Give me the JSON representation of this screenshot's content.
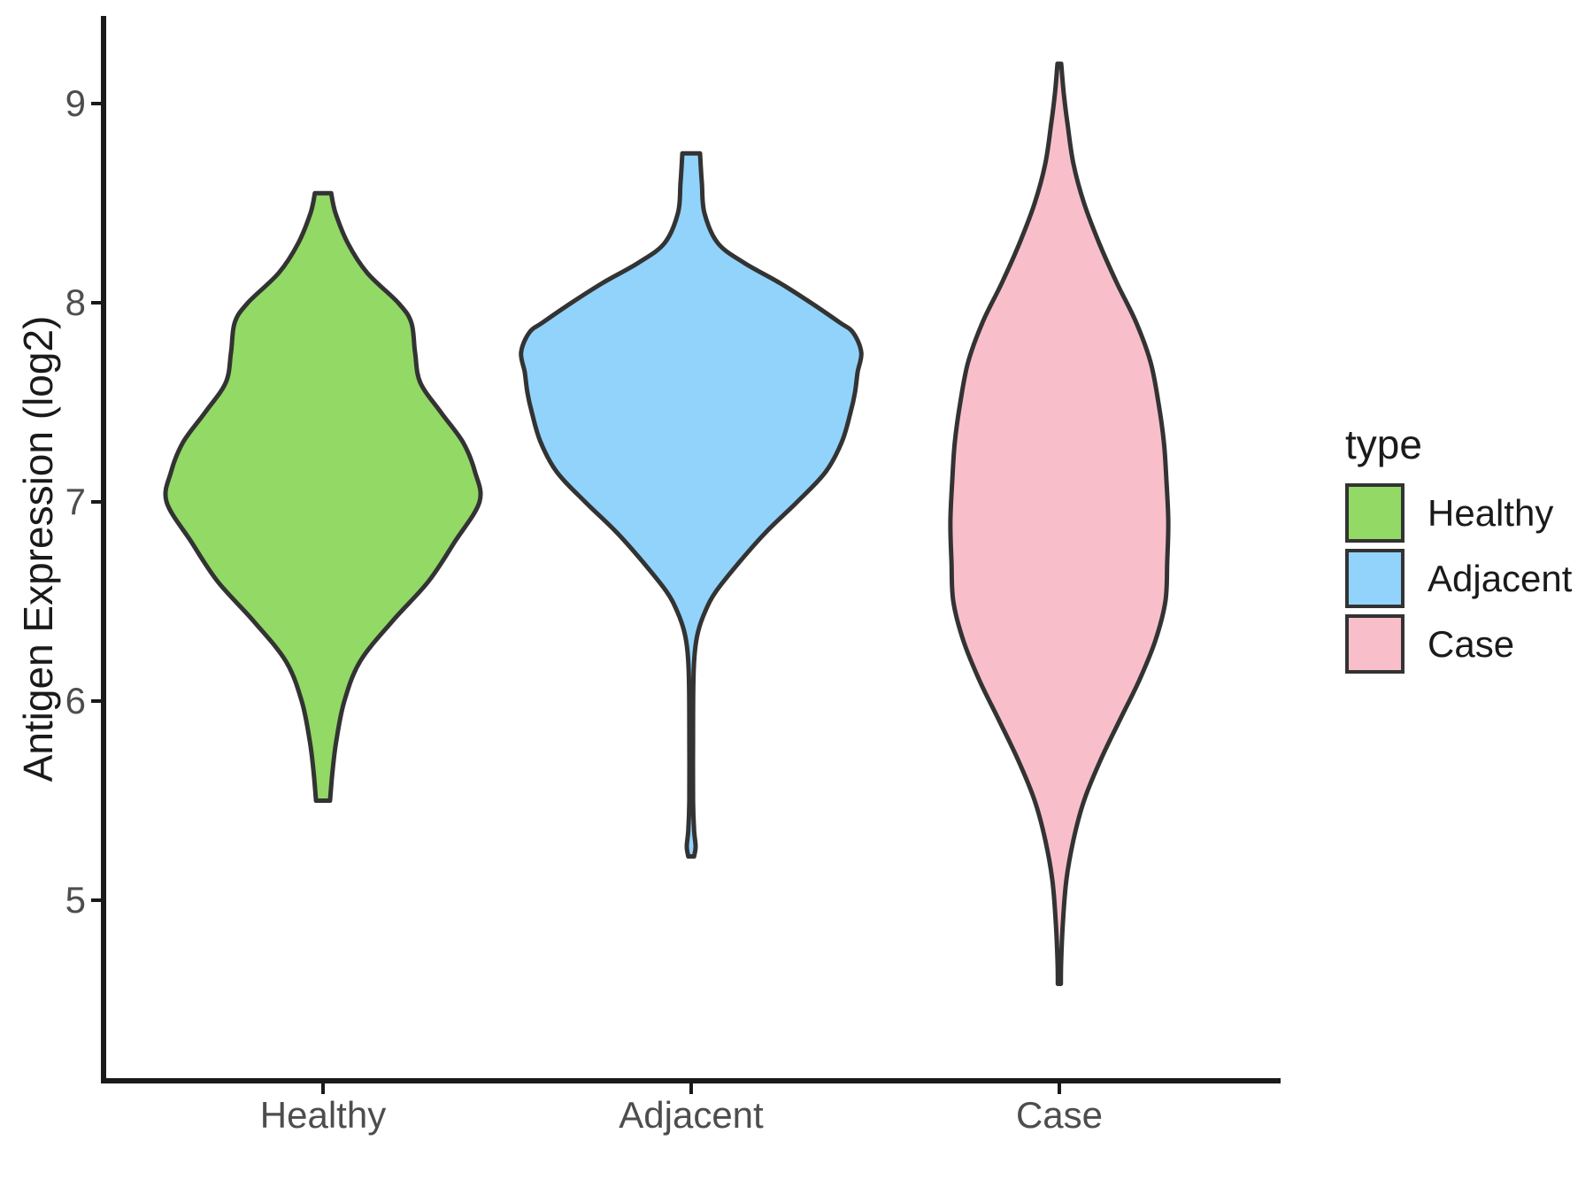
{
  "y_axis": {
    "title": "Antigen Expression (log2)",
    "ticks": [
      "9",
      "8",
      "7",
      "6",
      "5"
    ]
  },
  "x_axis": {
    "categories": [
      "Healthy",
      "Adjacent",
      "Case"
    ]
  },
  "legend": {
    "title": "type",
    "entries": [
      {
        "label": "Healthy",
        "color": "#92D966"
      },
      {
        "label": "Adjacent",
        "color": "#92D3FC"
      },
      {
        "label": "Case",
        "color": "#F8BFCB"
      }
    ]
  },
  "chart_data": {
    "type": "violin",
    "title": "",
    "xlabel": "",
    "ylabel": "Antigen Expression (log2)",
    "categories": [
      "Healthy",
      "Adjacent",
      "Case"
    ],
    "y_ticks": [
      9,
      8,
      7,
      6,
      5
    ],
    "ylim_shown": [
      4.1,
      9.45
    ],
    "grid": "off",
    "legend_position": "right",
    "legend_title": "type",
    "outline_color": "#333333",
    "axis_color": "#1A1A1A",
    "tick_text_color": "#4D4D4D",
    "groups": [
      {
        "name": "Healthy",
        "fill": "#92D966",
        "value_range": [
          5.5,
          8.55
        ],
        "profile": [
          [
            8.55,
            0.022
          ],
          [
            8.45,
            0.034
          ],
          [
            8.3,
            0.067
          ],
          [
            8.15,
            0.12
          ],
          [
            8.0,
            0.204
          ],
          [
            7.9,
            0.24
          ],
          [
            7.75,
            0.25
          ],
          [
            7.6,
            0.264
          ],
          [
            7.45,
            0.32
          ],
          [
            7.3,
            0.38
          ],
          [
            7.15,
            0.413
          ],
          [
            7.0,
            0.425
          ],
          [
            6.8,
            0.358
          ],
          [
            6.6,
            0.286
          ],
          [
            6.4,
            0.188
          ],
          [
            6.2,
            0.101
          ],
          [
            6.0,
            0.058
          ],
          [
            5.8,
            0.036
          ],
          [
            5.65,
            0.026
          ],
          [
            5.5,
            0.019
          ]
        ]
      },
      {
        "name": "Adjacent",
        "fill": "#92D3FC",
        "value_range": [
          5.22,
          8.75
        ],
        "profile": [
          [
            8.75,
            0.024
          ],
          [
            8.6,
            0.029
          ],
          [
            8.45,
            0.036
          ],
          [
            8.3,
            0.072
          ],
          [
            8.2,
            0.144
          ],
          [
            8.1,
            0.24
          ],
          [
            8.0,
            0.325
          ],
          [
            7.9,
            0.404
          ],
          [
            7.85,
            0.44
          ],
          [
            7.75,
            0.462
          ],
          [
            7.65,
            0.452
          ],
          [
            7.55,
            0.445
          ],
          [
            7.45,
            0.433
          ],
          [
            7.3,
            0.409
          ],
          [
            7.15,
            0.365
          ],
          [
            7.0,
            0.288
          ],
          [
            6.85,
            0.204
          ],
          [
            6.7,
            0.132
          ],
          [
            6.55,
            0.067
          ],
          [
            6.45,
            0.038
          ],
          [
            6.35,
            0.019
          ],
          [
            6.25,
            0.01
          ],
          [
            6.1,
            0.006
          ],
          [
            5.8,
            0.005
          ],
          [
            5.5,
            0.005
          ],
          [
            5.35,
            0.008
          ],
          [
            5.27,
            0.012
          ],
          [
            5.22,
            0.008
          ]
        ]
      },
      {
        "name": "Case",
        "fill": "#F8BFCB",
        "value_range": [
          4.58,
          9.2
        ],
        "profile": [
          [
            9.2,
            0.005
          ],
          [
            9.05,
            0.012
          ],
          [
            8.9,
            0.022
          ],
          [
            8.7,
            0.038
          ],
          [
            8.5,
            0.067
          ],
          [
            8.3,
            0.108
          ],
          [
            8.1,
            0.156
          ],
          [
            7.9,
            0.209
          ],
          [
            7.7,
            0.248
          ],
          [
            7.5,
            0.269
          ],
          [
            7.3,
            0.284
          ],
          [
            7.1,
            0.291
          ],
          [
            6.9,
            0.296
          ],
          [
            6.7,
            0.293
          ],
          [
            6.5,
            0.288
          ],
          [
            6.3,
            0.26
          ],
          [
            6.1,
            0.216
          ],
          [
            5.9,
            0.163
          ],
          [
            5.7,
            0.111
          ],
          [
            5.5,
            0.067
          ],
          [
            5.3,
            0.038
          ],
          [
            5.1,
            0.019
          ],
          [
            4.9,
            0.01
          ],
          [
            4.7,
            0.005
          ],
          [
            4.58,
            0.004
          ]
        ]
      }
    ]
  }
}
